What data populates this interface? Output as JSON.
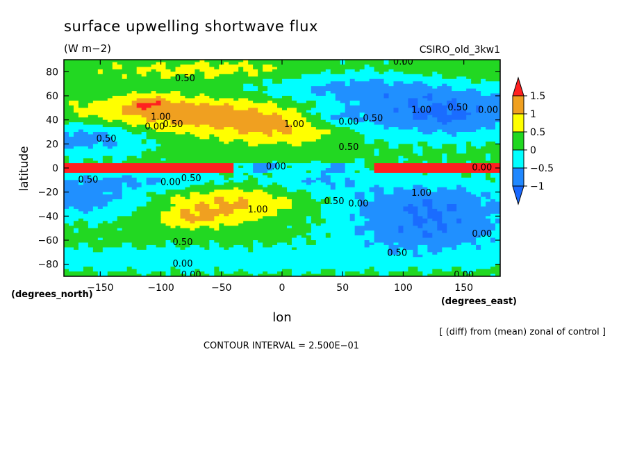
{
  "chart_data": {
    "type": "heatmap",
    "title": "surface upwelling shortwave flux",
    "units": "(W m−2)",
    "model": "CSIRO_old_3kw1",
    "xlabel": "lon",
    "ylabel": "latitude",
    "x_units": "(degrees_east)",
    "y_units": "(degrees_north)",
    "xlim": [
      -180,
      180
    ],
    "ylim": [
      -90,
      90
    ],
    "x_ticks": [
      -150,
      -100,
      -50,
      0,
      50,
      100,
      150
    ],
    "y_ticks": [
      80,
      60,
      40,
      20,
      0,
      -20,
      -40,
      -60,
      -80
    ],
    "x_tick_labels": [
      "−150",
      "−100",
      "−50",
      "0",
      "50",
      "100",
      "150"
    ],
    "y_tick_labels": [
      "80",
      "60",
      "40",
      "20",
      "0",
      "−20",
      "−40",
      "−60",
      "−80"
    ],
    "colorbar": {
      "ticks": [
        1.5,
        1,
        0.5,
        0,
        -0.5,
        -1
      ],
      "labels": [
        "1.5",
        "1",
        "0.5",
        "0",
        "−0.5",
        "−1"
      ],
      "colors": [
        "#ff2020",
        "#f0a020",
        "#ffff00",
        "#20d820",
        "#00ffff",
        "#2088ff",
        "#1868ff"
      ]
    },
    "annotation": "[ (diff) from (mean) zonal of control ]",
    "contour_interval": "CONTOUR INTERVAL = 2.500E−01",
    "contour_labels": [
      {
        "text": "0.50",
        "lon": -80,
        "lat": 74
      },
      {
        "text": "1.00",
        "lon": -100,
        "lat": 42
      },
      {
        "text": "0.50",
        "lon": -90,
        "lat": 36
      },
      {
        "text": "0.00",
        "lon": -105,
        "lat": 34
      },
      {
        "text": "1.00",
        "lon": 10,
        "lat": 36
      },
      {
        "text": "0.50",
        "lon": -145,
        "lat": 24
      },
      {
        "text": "0.50",
        "lon": 55,
        "lat": 17
      },
      {
        "text": "0.00",
        "lon": 55,
        "lat": 38
      },
      {
        "text": "0.50",
        "lon": 75,
        "lat": 41
      },
      {
        "text": "1.00",
        "lon": 115,
        "lat": 48
      },
      {
        "text": "0.50",
        "lon": 145,
        "lat": 50
      },
      {
        "text": "0.00",
        "lon": 170,
        "lat": 48
      },
      {
        "text": "0.00",
        "lon": 100,
        "lat": 88
      },
      {
        "text": "0.00",
        "lon": -92,
        "lat": -12
      },
      {
        "text": "0.50",
        "lon": -75,
        "lat": -9
      },
      {
        "text": "0.00",
        "lon": -5,
        "lat": 1
      },
      {
        "text": "1.00",
        "lon": -20,
        "lat": -35
      },
      {
        "text": "0.50",
        "lon": 43,
        "lat": -28
      },
      {
        "text": "0.00",
        "lon": 63,
        "lat": -30
      },
      {
        "text": "1.00",
        "lon": 115,
        "lat": -21
      },
      {
        "text": "0.50",
        "lon": -82,
        "lat": -62
      },
      {
        "text": "0.00",
        "lon": -82,
        "lat": -80
      },
      {
        "text": "0.00",
        "lon": -75,
        "lat": -89
      },
      {
        "text": "0.50",
        "lon": 95,
        "lat": -71
      },
      {
        "text": "0.00",
        "lon": 165,
        "lat": -55
      },
      {
        "text": "0.00",
        "lon": 150,
        "lat": -89
      },
      {
        "text": "0.00",
        "lon": 165,
        "lat": 0
      },
      {
        "text": "0.50",
        "lon": -160,
        "lat": -10
      }
    ]
  }
}
